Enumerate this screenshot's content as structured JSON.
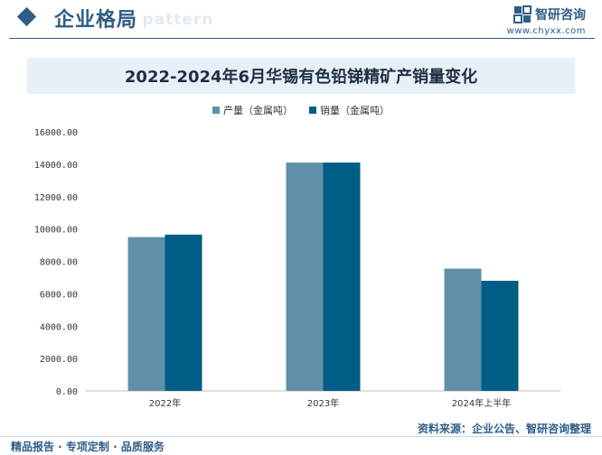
{
  "header": {
    "section_title": "企业格局",
    "watermark_text": "e pattern",
    "brand_name": "智研咨询",
    "brand_url": "www.chyxx.com",
    "accent_color": "#2f5d86"
  },
  "chart_data": {
    "type": "bar",
    "title": "2022-2024年6月华锡有色铅锑精矿产销量变化",
    "categories": [
      "2022年",
      "2023年",
      "2024年上半年"
    ],
    "series": [
      {
        "name": "产量（金属吨）",
        "color": "#5f90a8",
        "values": [
          9500,
          14100,
          7550
        ]
      },
      {
        "name": "销量（金属吨）",
        "color": "#005e86",
        "values": [
          9650,
          14100,
          6800
        ]
      }
    ],
    "ylim": [
      0,
      16000
    ],
    "yticks": [
      "0.00",
      "2000.00",
      "4000.00",
      "6000.00",
      "8000.00",
      "10000.00",
      "12000.00",
      "14000.00",
      "16000.00"
    ],
    "xlabel": "",
    "ylabel": "",
    "grid": false,
    "legend": "top-center"
  },
  "footer": {
    "source": "资料来源：企业公告、智研咨询整理",
    "slogan": "精品报告 · 专项定制 · 品质服务"
  }
}
